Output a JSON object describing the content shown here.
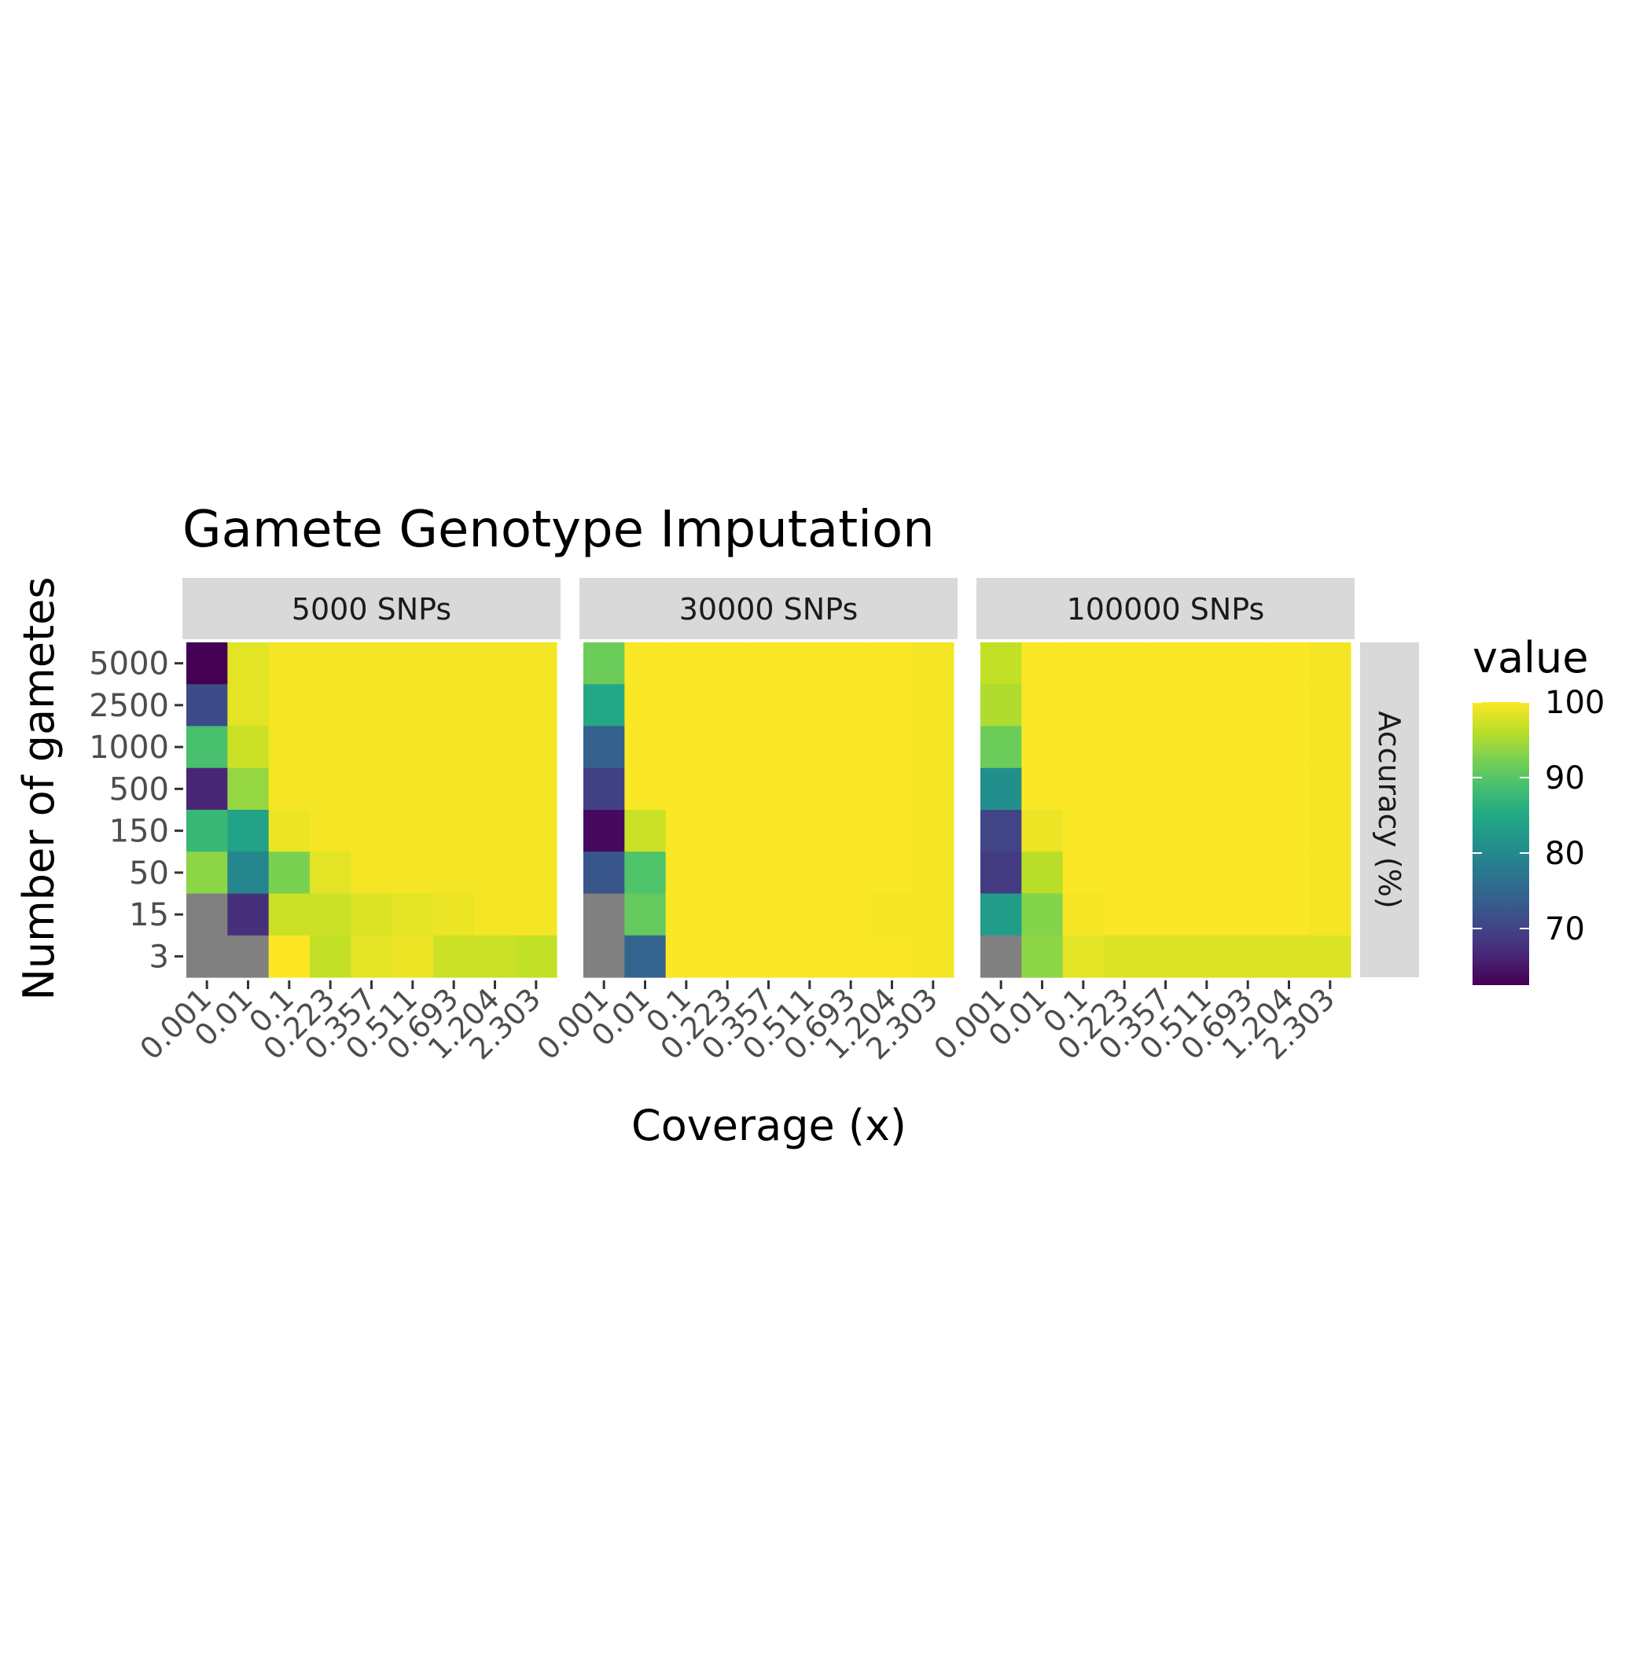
{
  "chart_data": {
    "type": "heatmap",
    "title": "Gamete Genotype Imputation",
    "xlabel": "Coverage (x)",
    "ylabel": "Number of gametes",
    "row_strip_label": "Accuracy (%)",
    "x_categories": [
      "0.001",
      "0.01",
      "0.1",
      "0.223",
      "0.357",
      "0.511",
      "0.693",
      "1.204",
      "2.303"
    ],
    "y_categories": [
      "5000",
      "2500",
      "1000",
      "500",
      "150",
      "50",
      "15",
      "3"
    ],
    "legend": {
      "title": "value",
      "ticks": [
        70,
        80,
        90,
        100
      ],
      "range": [
        62.5,
        100
      ],
      "palette": "viridis",
      "position": "right"
    },
    "missing_color": "#808080",
    "panels": [
      {
        "label": "5000 SNPs",
        "values": [
          [
            62.5,
            98.5,
            99.5,
            99.5,
            99.5,
            99.5,
            99.5,
            99.5,
            99.5
          ],
          [
            71.0,
            98.5,
            99.5,
            99.5,
            99.5,
            99.5,
            99.5,
            99.5,
            99.5
          ],
          [
            89.0,
            97.0,
            99.5,
            99.5,
            99.5,
            99.5,
            99.5,
            99.5,
            99.5
          ],
          [
            66.5,
            94.0,
            99.5,
            99.5,
            99.5,
            99.5,
            99.5,
            99.5,
            99.5
          ],
          [
            87.5,
            84.0,
            99.0,
            99.5,
            99.5,
            99.5,
            99.5,
            99.5,
            99.5
          ],
          [
            93.5,
            79.5,
            92.5,
            98.5,
            99.5,
            99.5,
            99.5,
            99.5,
            99.5
          ],
          [
            null,
            67.5,
            97.0,
            97.0,
            98.0,
            98.5,
            99.0,
            99.5,
            99.5
          ],
          [
            null,
            null,
            100.0,
            96.5,
            98.5,
            99.0,
            97.0,
            97.0,
            96.5
          ]
        ]
      },
      {
        "label": "30000 SNPs",
        "values": [
          [
            91.5,
            99.8,
            99.8,
            99.8,
            99.8,
            99.8,
            99.8,
            99.8,
            99.5
          ],
          [
            85.0,
            99.8,
            99.8,
            99.8,
            99.8,
            99.8,
            99.8,
            99.8,
            99.5
          ],
          [
            74.0,
            99.8,
            99.8,
            99.8,
            99.8,
            99.8,
            99.8,
            99.8,
            99.5
          ],
          [
            69.5,
            99.8,
            99.8,
            99.8,
            99.8,
            99.8,
            99.8,
            99.8,
            99.5
          ],
          [
            63.5,
            97.0,
            99.8,
            99.8,
            99.8,
            99.8,
            99.8,
            99.8,
            99.5
          ],
          [
            72.5,
            89.5,
            99.8,
            99.8,
            99.8,
            99.8,
            99.8,
            99.8,
            99.5
          ],
          [
            null,
            91.0,
            99.8,
            99.8,
            99.8,
            99.8,
            99.8,
            99.5,
            99.5
          ],
          [
            null,
            74.5,
            99.8,
            99.8,
            99.8,
            99.8,
            99.8,
            99.8,
            99.5
          ]
        ]
      },
      {
        "label": "100000 SNPs",
        "values": [
          [
            96.5,
            99.8,
            99.8,
            99.8,
            99.8,
            99.8,
            99.8,
            99.8,
            99.5
          ],
          [
            95.5,
            99.8,
            99.8,
            99.8,
            99.8,
            99.8,
            99.8,
            99.8,
            99.5
          ],
          [
            91.5,
            99.8,
            99.8,
            99.8,
            99.8,
            99.8,
            99.8,
            99.8,
            99.5
          ],
          [
            81.0,
            99.8,
            99.8,
            99.8,
            99.8,
            99.8,
            99.8,
            99.8,
            99.5
          ],
          [
            70.0,
            99.0,
            99.8,
            99.8,
            99.8,
            99.8,
            99.8,
            99.8,
            99.5
          ],
          [
            69.0,
            96.0,
            99.8,
            99.8,
            99.8,
            99.8,
            99.8,
            99.8,
            99.5
          ],
          [
            83.0,
            93.0,
            99.5,
            99.8,
            99.8,
            99.8,
            99.8,
            99.8,
            99.5
          ],
          [
            null,
            93.5,
            98.5,
            98.0,
            98.0,
            98.0,
            98.0,
            98.0,
            98.0
          ]
        ]
      }
    ]
  }
}
